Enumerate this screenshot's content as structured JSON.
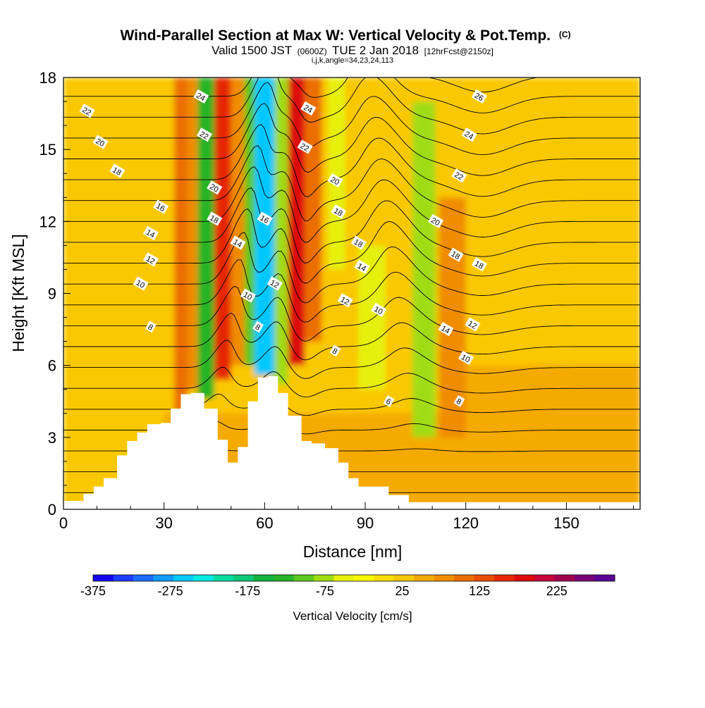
{
  "chart_data": {
    "type": "heatmap",
    "title": "Wind-Parallel Section at Max W: Vertical Velocity & Pot.Temp.",
    "title_mark": "(C)",
    "subtitle_parts": [
      "Valid 1500 JST",
      "(0600Z)",
      "TUE 2 Jan 2018",
      "[12hrFcst@2150z]"
    ],
    "subtitle2": "i,j,k,angle=34,23,24,113",
    "xlabel": "Distance [nm]",
    "ylabel": "Height [Kft MSL]",
    "xlim": [
      0,
      172
    ],
    "ylim": [
      0,
      18
    ],
    "x_ticks": [
      "0",
      "30",
      "60",
      "90",
      "120",
      "150"
    ],
    "y_ticks": [
      "0",
      "3",
      "6",
      "9",
      "12",
      "15",
      "18"
    ],
    "colorbar": {
      "title": "Vertical Velocity [cm/s]",
      "labels": [
        "-375",
        "-275",
        "-175",
        "-75",
        "25",
        "125",
        "225"
      ],
      "min": -375,
      "max": 300,
      "colors": [
        "#1400f0",
        "#1e3cff",
        "#1c6cff",
        "#129cff",
        "#00c8ff",
        "#00e8e0",
        "#00dca0",
        "#10c878",
        "#14b43c",
        "#28b428",
        "#5ac81e",
        "#a0dc14",
        "#e6f00a",
        "#f8f800",
        "#fadc00",
        "#fac800",
        "#f5aa00",
        "#f08c00",
        "#eb6e00",
        "#e84e00",
        "#e62800",
        "#dc0a0a",
        "#c8003c",
        "#a00050",
        "#780078",
        "#5a0096"
      ]
    },
    "velocity_cells": [
      {
        "x0": 0,
        "x1": 172,
        "y0": 0,
        "y1": 18,
        "w": 20
      },
      {
        "x0": 0,
        "x1": 172,
        "y0": 0,
        "y1": 4,
        "w": 45
      },
      {
        "x0": 0,
        "x1": 30,
        "y0": 0,
        "y1": 10,
        "w": 40
      },
      {
        "x0": 120,
        "x1": 172,
        "y0": 0,
        "y1": 6,
        "w": 45
      },
      {
        "x0": 33,
        "x1": 37,
        "y0": 4,
        "y1": 18,
        "w": 100
      },
      {
        "x0": 37,
        "x1": 40,
        "y0": 5,
        "y1": 18,
        "w": 70
      },
      {
        "x0": 40,
        "x1": 45,
        "y0": 4.6,
        "y1": 18,
        "w": -130
      },
      {
        "x0": 45,
        "x1": 50,
        "y0": 5.4,
        "y1": 18,
        "w": 160
      },
      {
        "x0": 50,
        "x1": 54,
        "y0": 6,
        "y1": 18,
        "w": 80
      },
      {
        "x0": 54,
        "x1": 57,
        "y0": 6,
        "y1": 18,
        "w": -100
      },
      {
        "x0": 57,
        "x1": 63,
        "y0": 5.6,
        "y1": 18,
        "w": -260
      },
      {
        "x0": 63,
        "x1": 67,
        "y0": 5.2,
        "y1": 18,
        "w": -70
      },
      {
        "x0": 67,
        "x1": 72,
        "y0": 6,
        "y1": 18,
        "w": 190
      },
      {
        "x0": 72,
        "x1": 77,
        "y0": 7,
        "y1": 18,
        "w": 110
      },
      {
        "x0": 79,
        "x1": 84,
        "y0": 10,
        "y1": 18,
        "w": -60
      },
      {
        "x0": 88,
        "x1": 96,
        "y0": 5,
        "y1": 11,
        "w": -40
      },
      {
        "x0": 104,
        "x1": 111,
        "y0": 3,
        "y1": 17,
        "w": -80
      },
      {
        "x0": 112,
        "x1": 120,
        "y0": 3,
        "y1": 13,
        "w": 70
      }
    ],
    "terrain": [
      [
        0,
        0.35
      ],
      [
        6,
        0.35
      ],
      [
        6,
        0.65
      ],
      [
        9,
        0.65
      ],
      [
        9,
        0.95
      ],
      [
        12,
        0.95
      ],
      [
        12,
        1.3
      ],
      [
        16,
        1.3
      ],
      [
        16,
        2.25
      ],
      [
        19,
        2.25
      ],
      [
        19,
        2.85
      ],
      [
        22,
        2.85
      ],
      [
        22,
        3.2
      ],
      [
        25,
        3.2
      ],
      [
        25,
        3.55
      ],
      [
        29,
        3.55
      ],
      [
        29,
        3.6
      ],
      [
        32,
        3.6
      ],
      [
        32,
        4.2
      ],
      [
        35,
        4.2
      ],
      [
        35,
        4.8
      ],
      [
        38,
        4.8
      ],
      [
        38,
        4.85
      ],
      [
        42,
        4.85
      ],
      [
        42,
        4.2
      ],
      [
        46,
        4.2
      ],
      [
        46,
        2.9
      ],
      [
        49,
        2.9
      ],
      [
        49,
        1.95
      ],
      [
        52,
        1.95
      ],
      [
        52,
        2.6
      ],
      [
        55,
        2.6
      ],
      [
        55,
        4.5
      ],
      [
        58,
        4.5
      ],
      [
        58,
        5.5
      ],
      [
        61,
        5.5
      ],
      [
        61,
        5.55
      ],
      [
        64,
        5.55
      ],
      [
        64,
        4.85
      ],
      [
        67,
        4.85
      ],
      [
        67,
        3.9
      ],
      [
        71,
        3.9
      ],
      [
        71,
        2.85
      ],
      [
        74,
        2.85
      ],
      [
        74,
        2.75
      ],
      [
        78,
        2.75
      ],
      [
        78,
        2.55
      ],
      [
        82,
        2.55
      ],
      [
        82,
        1.95
      ],
      [
        85,
        1.95
      ],
      [
        85,
        1.3
      ],
      [
        88,
        1.3
      ],
      [
        88,
        0.95
      ],
      [
        91,
        0.95
      ],
      [
        91,
        0.95
      ],
      [
        97,
        0.95
      ],
      [
        97,
        0.6
      ],
      [
        103,
        0.6
      ],
      [
        103,
        0.3
      ],
      [
        172,
        0.3
      ]
    ],
    "theta_levels": [
      4,
      5,
      6,
      7,
      8,
      9,
      10,
      11,
      12,
      13,
      14,
      15,
      16,
      17,
      18,
      19,
      20,
      21,
      22,
      23,
      24,
      25,
      26,
      27
    ],
    "contour_labels": [
      {
        "text": "22",
        "x": 7,
        "y": 16.6
      },
      {
        "text": "20",
        "x": 11,
        "y": 15.3
      },
      {
        "text": "18",
        "x": 16,
        "y": 14.1
      },
      {
        "text": "16",
        "x": 29,
        "y": 12.6
      },
      {
        "text": "14",
        "x": 26,
        "y": 11.5
      },
      {
        "text": "12",
        "x": 26,
        "y": 10.4
      },
      {
        "text": "10",
        "x": 23,
        "y": 9.4
      },
      {
        "text": "8",
        "x": 26,
        "y": 7.6
      },
      {
        "text": "24",
        "x": 41,
        "y": 17.2
      },
      {
        "text": "22",
        "x": 42,
        "y": 15.6
      },
      {
        "text": "20",
        "x": 45,
        "y": 13.4
      },
      {
        "text": "18",
        "x": 45,
        "y": 12.1
      },
      {
        "text": "14",
        "x": 52,
        "y": 11.1
      },
      {
        "text": "16",
        "x": 60,
        "y": 12.1
      },
      {
        "text": "12",
        "x": 63,
        "y": 9.4
      },
      {
        "text": "10",
        "x": 55,
        "y": 8.9
      },
      {
        "text": "8",
        "x": 58,
        "y": 7.6
      },
      {
        "text": "24",
        "x": 73,
        "y": 16.7
      },
      {
        "text": "22",
        "x": 72,
        "y": 15.1
      },
      {
        "text": "20",
        "x": 81,
        "y": 13.7
      },
      {
        "text": "18",
        "x": 82,
        "y": 12.4
      },
      {
        "text": "18",
        "x": 88,
        "y": 11.1
      },
      {
        "text": "14",
        "x": 89,
        "y": 10.1
      },
      {
        "text": "12",
        "x": 84,
        "y": 8.7
      },
      {
        "text": "10",
        "x": 94,
        "y": 8.3
      },
      {
        "text": "8",
        "x": 81,
        "y": 6.6
      },
      {
        "text": "6",
        "x": 97,
        "y": 4.5
      },
      {
        "text": "20",
        "x": 111,
        "y": 12.0
      },
      {
        "text": "18",
        "x": 117,
        "y": 10.6
      },
      {
        "text": "18",
        "x": 124,
        "y": 10.2
      },
      {
        "text": "14",
        "x": 114,
        "y": 7.5
      },
      {
        "text": "12",
        "x": 122,
        "y": 7.7
      },
      {
        "text": "10",
        "x": 120,
        "y": 6.3
      },
      {
        "text": "8",
        "x": 118,
        "y": 4.5
      },
      {
        "text": "22",
        "x": 118,
        "y": 13.9
      },
      {
        "text": "24",
        "x": 121,
        "y": 15.6
      },
      {
        "text": "26",
        "x": 124,
        "y": 17.2
      }
    ]
  }
}
